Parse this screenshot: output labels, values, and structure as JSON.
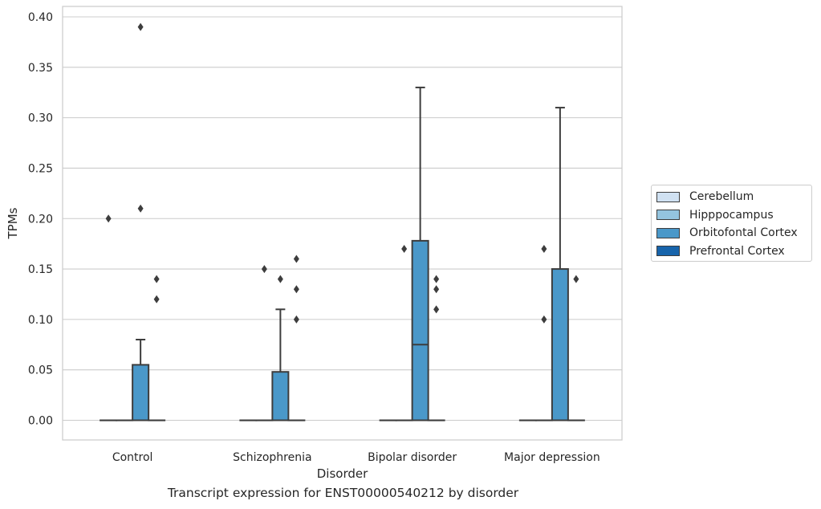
{
  "chart_data": {
    "type": "box",
    "title": "Transcript expression for ENST00000540212 by disorder",
    "xlabel": "Disorder",
    "ylabel": "TPMs",
    "ylim": [
      -0.019,
      0.41
    ],
    "yticks": [
      0.0,
      0.05,
      0.1,
      0.15,
      0.2,
      0.25,
      0.3,
      0.35,
      0.4
    ],
    "ytick_labels": [
      "0.00",
      "0.05",
      "0.10",
      "0.15",
      "0.20",
      "0.25",
      "0.30",
      "0.35",
      "0.40"
    ],
    "categories": [
      "Control",
      "Schizophrenia",
      "Bipolar disorder",
      "Major depression"
    ],
    "grid": "horizontal",
    "legend_position": "right",
    "series": [
      {
        "name": "Cerebellum",
        "color": "#d0e1f2",
        "boxes": [
          {
            "q1": 0,
            "median": 0,
            "q3": 0,
            "whisker_low": 0,
            "whisker_high": 0,
            "outliers": [
              0.2
            ]
          },
          {
            "q1": 0,
            "median": 0,
            "q3": 0,
            "whisker_low": 0,
            "whisker_high": 0,
            "outliers": []
          },
          {
            "q1": 0,
            "median": 0,
            "q3": 0,
            "whisker_low": 0,
            "whisker_high": 0,
            "outliers": []
          },
          {
            "q1": 0,
            "median": 0,
            "q3": 0,
            "whisker_low": 0,
            "whisker_high": 0,
            "outliers": []
          }
        ]
      },
      {
        "name": "Hipppocampus",
        "color": "#94c4df",
        "boxes": [
          {
            "q1": 0,
            "median": 0,
            "q3": 0,
            "whisker_low": 0,
            "whisker_high": 0,
            "outliers": []
          },
          {
            "q1": 0,
            "median": 0,
            "q3": 0,
            "whisker_low": 0,
            "whisker_high": 0,
            "outliers": [
              0.15
            ]
          },
          {
            "q1": 0,
            "median": 0,
            "q3": 0,
            "whisker_low": 0,
            "whisker_high": 0,
            "outliers": [
              0.17
            ]
          },
          {
            "q1": 0,
            "median": 0,
            "q3": 0,
            "whisker_low": 0,
            "whisker_high": 0,
            "outliers": [
              0.17,
              0.1
            ]
          }
        ]
      },
      {
        "name": "Orbitofontal Cortex",
        "color": "#4a98c9",
        "boxes": [
          {
            "q1": 0,
            "median": 0,
            "q3": 0.055,
            "whisker_low": 0,
            "whisker_high": 0.08,
            "outliers": [
              0.39,
              0.21
            ]
          },
          {
            "q1": 0,
            "median": 0,
            "q3": 0.048,
            "whisker_low": 0,
            "whisker_high": 0.11,
            "outliers": [
              0.14
            ]
          },
          {
            "q1": 0,
            "median": 0.075,
            "q3": 0.178,
            "whisker_low": 0,
            "whisker_high": 0.33,
            "outliers": []
          },
          {
            "q1": 0,
            "median": 0,
            "q3": 0.15,
            "whisker_low": 0,
            "whisker_high": 0.31,
            "outliers": []
          }
        ]
      },
      {
        "name": "Prefrontal Cortex",
        "color": "#1764ab",
        "boxes": [
          {
            "q1": 0,
            "median": 0,
            "q3": 0,
            "whisker_low": 0,
            "whisker_high": 0,
            "outliers": [
              0.14,
              0.12
            ]
          },
          {
            "q1": 0,
            "median": 0,
            "q3": 0,
            "whisker_low": 0,
            "whisker_high": 0,
            "outliers": [
              0.16,
              0.13,
              0.1
            ]
          },
          {
            "q1": 0,
            "median": 0,
            "q3": 0,
            "whisker_low": 0,
            "whisker_high": 0,
            "outliers": [
              0.14,
              0.13,
              0.11
            ]
          },
          {
            "q1": 0,
            "median": 0,
            "q3": 0,
            "whisker_low": 0,
            "whisker_high": 0,
            "outliers": [
              0.14
            ]
          }
        ]
      }
    ]
  }
}
